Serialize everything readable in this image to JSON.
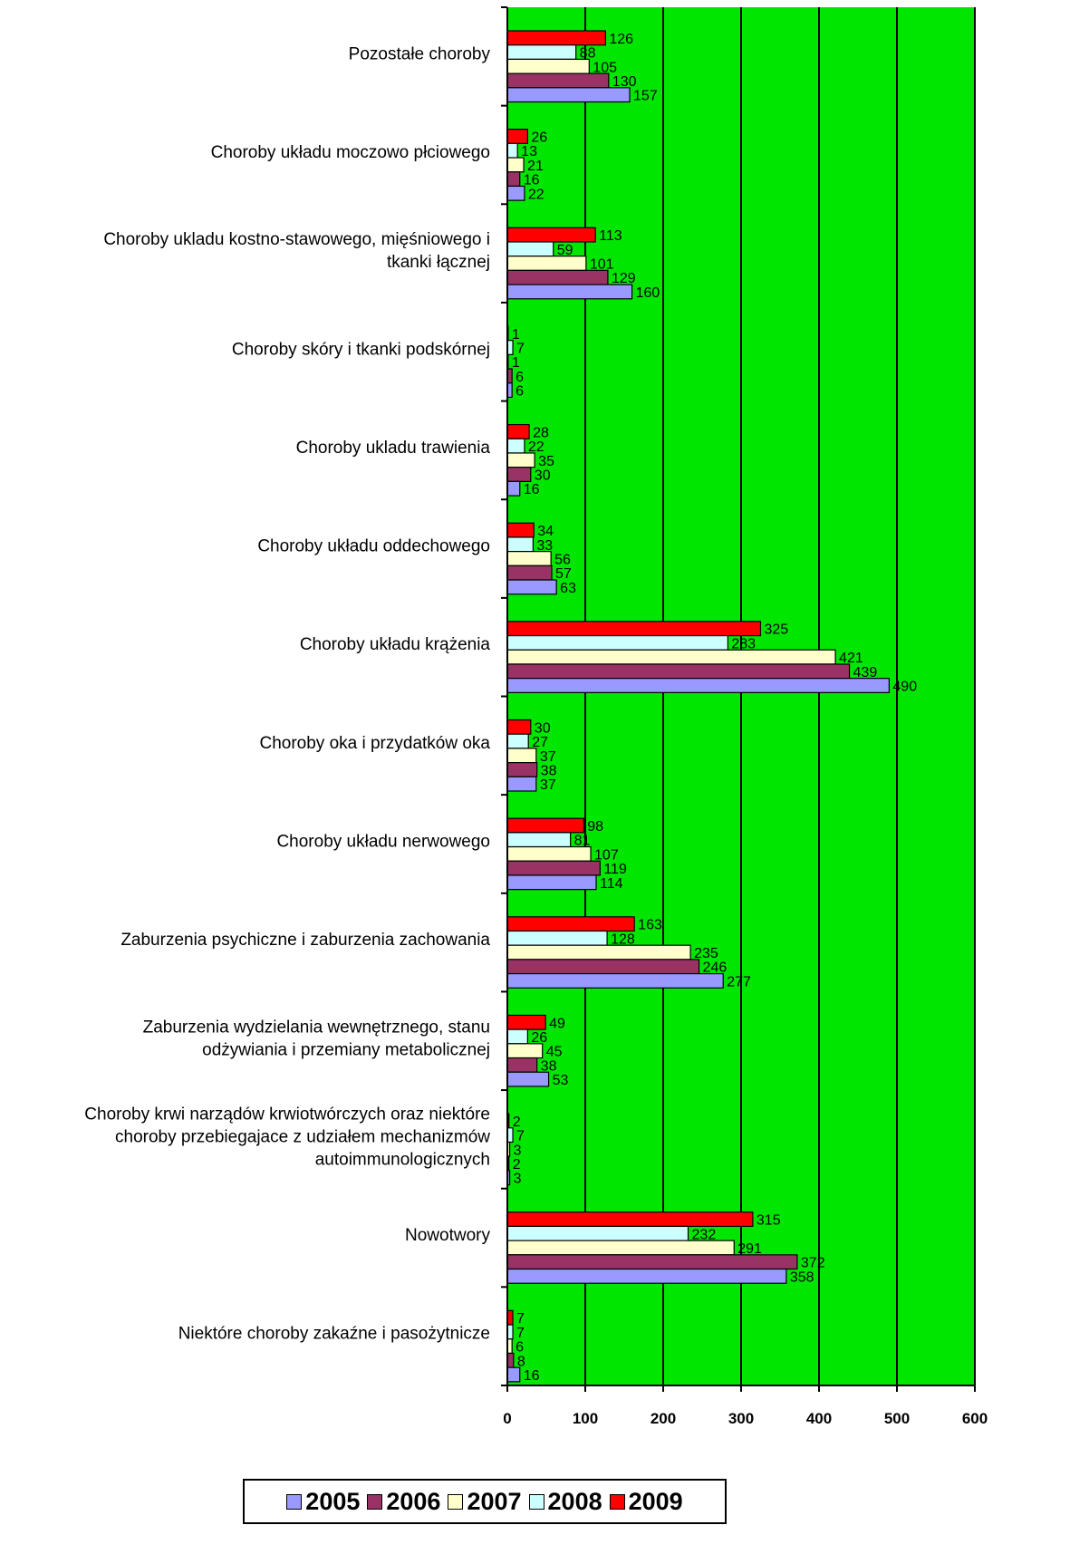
{
  "chart_data": {
    "type": "bar",
    "orientation": "horizontal",
    "title": "",
    "xlabel": "",
    "ylabel": "",
    "xlim": [
      0,
      600
    ],
    "xticks": [
      "0",
      "100",
      "200",
      "300",
      "400",
      "500",
      "600"
    ],
    "grid": true,
    "plot_background": "#00e600",
    "legend_position": "bottom",
    "categories": [
      "Pozostałe choroby",
      "Choroby układu moczowo płciowego",
      "Choroby ukladu kostno-stawowego, mięśniowego i tkanki łącznej",
      "Choroby skóry i tkanki podskórnej",
      "Choroby ukladu trawienia",
      "Choroby układu oddechowego",
      "Choroby układu krążenia",
      "Choroby oka i przydatków oka",
      "Choroby układu nerwowego",
      "Zaburzenia psychiczne i zaburzenia zachowania",
      "Zaburzenia wydzielania wewnętrznego, stanu odżywiania i przemiany metabolicznej",
      "Choroby krwi narządów krwiotwórczych oraz niektóre choroby przebiegajace z udziałem mechanizmów autoimmunologicznych",
      "Nowotwory",
      "Niektóre choroby zakaźne i pasożytnicze"
    ],
    "category_label_lines": [
      [
        "Pozostałe choroby"
      ],
      [
        "Choroby układu moczowo płciowego"
      ],
      [
        "Choroby ukladu kostno-stawowego, mięśniowego i",
        "tkanki łącznej"
      ],
      [
        "Choroby skóry i tkanki podskórnej"
      ],
      [
        "Choroby ukladu trawienia"
      ],
      [
        "Choroby układu oddechowego"
      ],
      [
        "Choroby układu krążenia"
      ],
      [
        "Choroby oka i przydatków oka"
      ],
      [
        "Choroby układu nerwowego"
      ],
      [
        "Zaburzenia psychiczne i zaburzenia zachowania"
      ],
      [
        "Zaburzenia wydzielania wewnętrznego, stanu",
        "odżywiania i przemiany metabolicznej"
      ],
      [
        "Choroby krwi narządów krwiotwórczych oraz niektóre",
        "choroby przebiegajace z udziałem mechanizmów",
        "autoimmunologicznych"
      ],
      [
        "Nowotwory"
      ],
      [
        "Niektóre choroby zakaźne i pasożytnicze"
      ]
    ],
    "series": [
      {
        "name": "2009",
        "color": "#ff0000",
        "values": [
          126,
          26,
          113,
          1,
          28,
          34,
          325,
          30,
          98,
          163,
          49,
          2,
          315,
          7
        ]
      },
      {
        "name": "2008",
        "color": "#ccffff",
        "values": [
          88,
          13,
          59,
          7,
          22,
          33,
          283,
          27,
          81,
          128,
          26,
          7,
          232,
          7
        ]
      },
      {
        "name": "2007",
        "color": "#ffffcc",
        "values": [
          105,
          21,
          101,
          1,
          35,
          56,
          421,
          37,
          107,
          235,
          45,
          3,
          291,
          6
        ]
      },
      {
        "name": "2006",
        "color": "#993366",
        "values": [
          130,
          16,
          129,
          6,
          30,
          57,
          439,
          38,
          119,
          246,
          38,
          2,
          372,
          8
        ]
      },
      {
        "name": "2005",
        "color": "#9999ff",
        "values": [
          157,
          22,
          160,
          6,
          16,
          63,
          490,
          37,
          114,
          277,
          53,
          3,
          358,
          16
        ]
      }
    ],
    "legend": [
      {
        "name": "2005",
        "color": "#9999ff"
      },
      {
        "name": "2006",
        "color": "#993366"
      },
      {
        "name": "2007",
        "color": "#ffffcc"
      },
      {
        "name": "2008",
        "color": "#ccffff"
      },
      {
        "name": "2009",
        "color": "#ff0000"
      }
    ]
  }
}
